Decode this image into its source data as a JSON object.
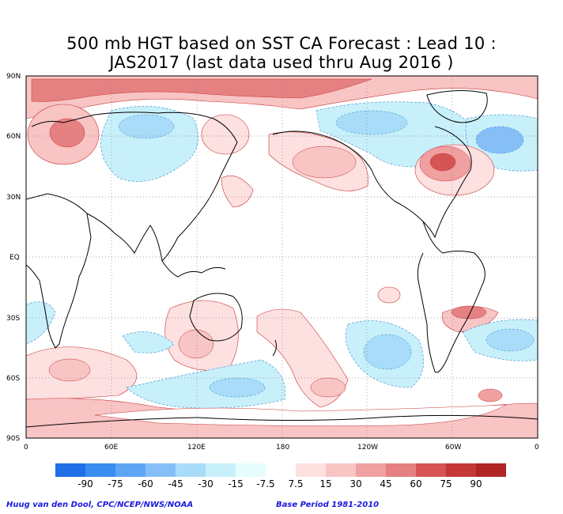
{
  "title": {
    "line1": "500 mb HGT based on SST CA Forecast : Lead 10 :",
    "line2": "JAS2017 (last data used thru Aug 2016 )"
  },
  "lat_labels": [
    "90N",
    "60N",
    "30N",
    "EQ",
    "30S",
    "60S",
    "90S"
  ],
  "lon_labels": [
    "0",
    "60E",
    "120E",
    "180",
    "120W",
    "60W",
    "0"
  ],
  "legend": {
    "labels": [
      "-90",
      "-75",
      "-60",
      "-45",
      "-30",
      "-15",
      "-7.5",
      "7.5",
      "15",
      "30",
      "45",
      "60",
      "75",
      "90"
    ],
    "colors": [
      "#1f6fe6",
      "#3b8cf0",
      "#5ea6f5",
      "#86bff8",
      "#a8dcf8",
      "#c8f0fa",
      "#e6fdfd",
      "#ffffff",
      "#fde0e0",
      "#f8c4c4",
      "#f0a0a0",
      "#e58181",
      "#d65454",
      "#c63737",
      "#b02626"
    ]
  },
  "credits": {
    "left": "Huug van den Dool, CPC/NCEP/NWS/NOAA",
    "right": "Base Period 1981-2010"
  },
  "colors": {
    "positive_light": "#fde0e0",
    "positive_mid": "#f8c4c4",
    "positive_strong": "#e58181",
    "negative_light": "#c8f0fa",
    "negative_mid": "#a8dcf8",
    "negative_strong": "#5ea6f5",
    "credit_text": "#1a1adf"
  }
}
